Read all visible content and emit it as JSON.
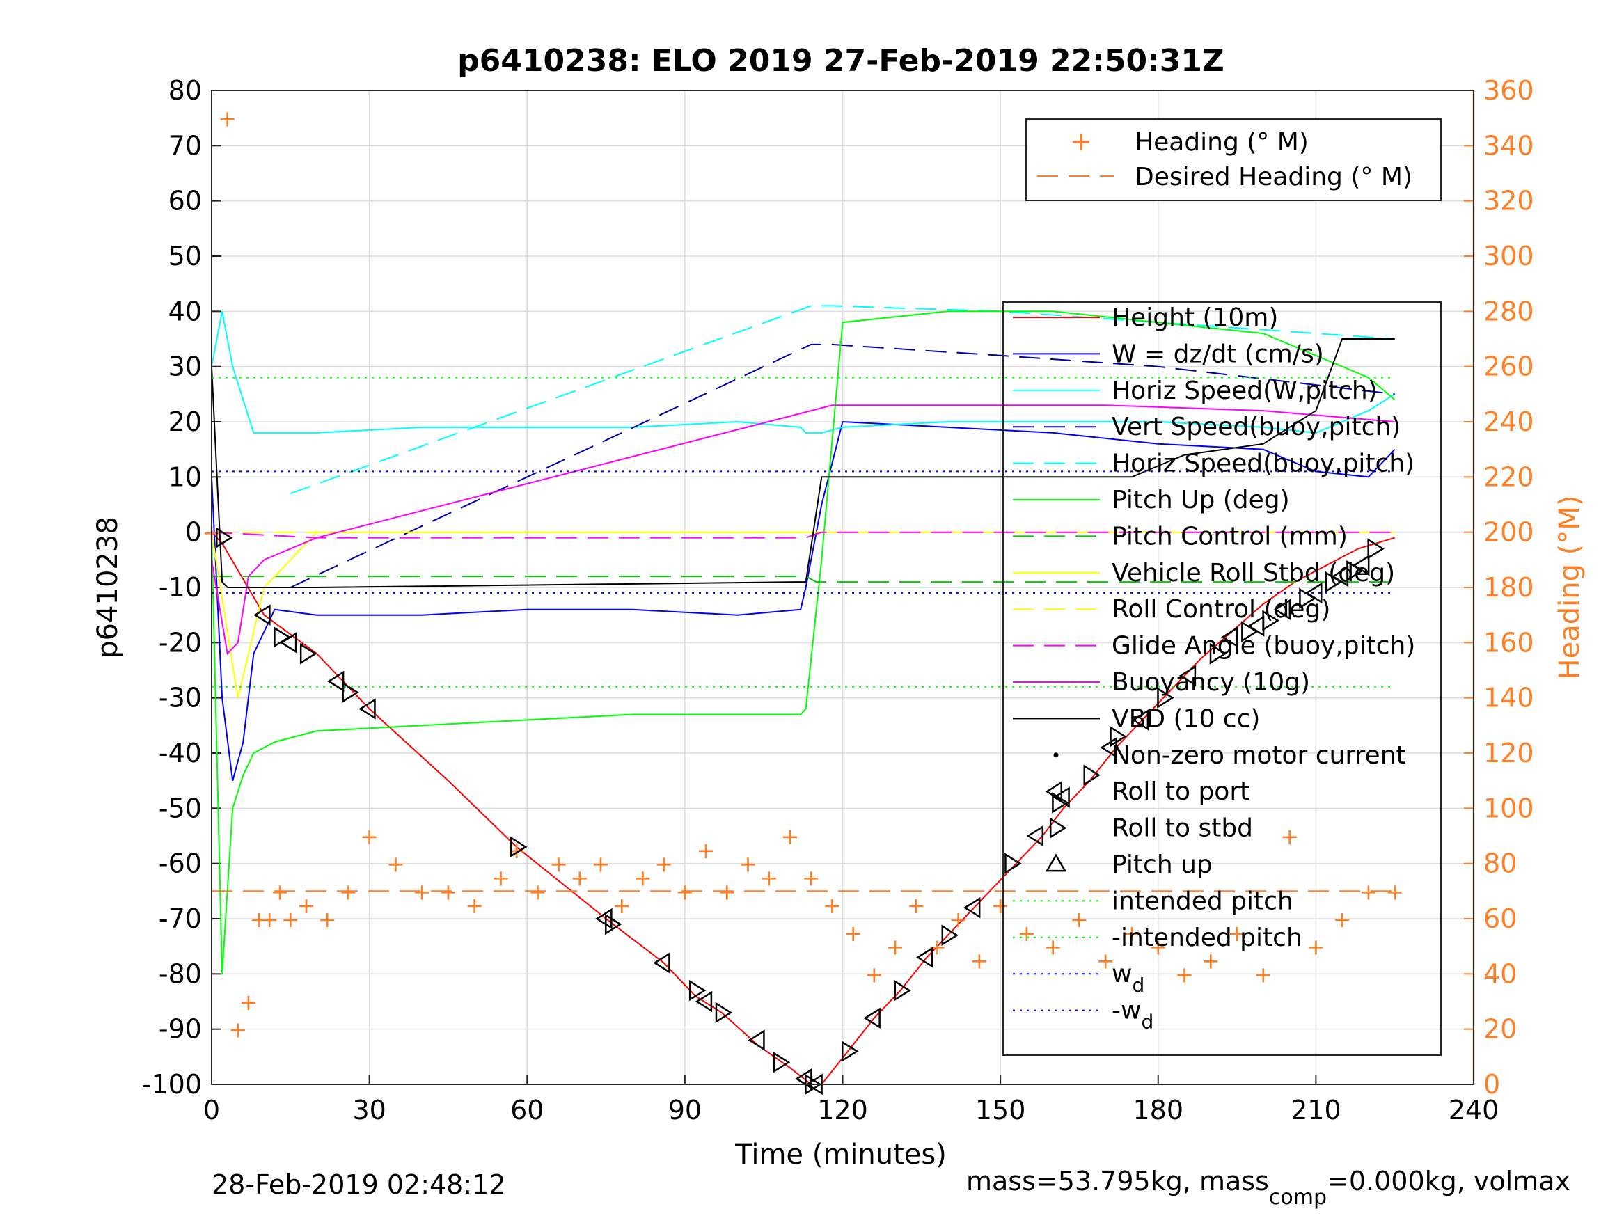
{
  "chart_data": {
    "type": "line",
    "title": "p6410238: ELO 2019 27-Feb-2019 22:50:31Z",
    "xlabel": "Time (minutes)",
    "ylabel": "p6410238",
    "y2label": "Heading (°M)",
    "xlim": [
      0,
      240
    ],
    "ylim": [
      -100,
      80
    ],
    "y2lim": [
      0,
      360
    ],
    "xticks": [
      "0",
      "30",
      "60",
      "90",
      "120",
      "150",
      "180",
      "210",
      "240"
    ],
    "yticks": [
      "80",
      "70",
      "60",
      "50",
      "40",
      "30",
      "20",
      "10",
      "0",
      "-10",
      "-20",
      "-30",
      "-40",
      "-50",
      "-60",
      "-70",
      "-80",
      "-90",
      "-100"
    ],
    "y2ticks": [
      "360",
      "340",
      "320",
      "300",
      "280",
      "260",
      "240",
      "220",
      "200",
      "180",
      "160",
      "140",
      "120",
      "100",
      "80",
      "60",
      "40",
      "20",
      "0"
    ],
    "grid": true,
    "colors": {
      "height": "#ff0000",
      "w": "#0000ff",
      "horiz_w": "#00ffff",
      "vert_buoy": "#0000aa",
      "horiz_buoy": "#00ffff",
      "pitch": "#00ff00",
      "pitch_ctrl": "#00cc00",
      "roll": "#ffff00",
      "roll_ctrl": "#ffff00",
      "glide": "#ff00ff",
      "buoy": "#ff00ff",
      "vbd": "#000000",
      "heading": "#ff7f27",
      "intended": "#00ff00",
      "wd": "#0000ff"
    },
    "series": [
      {
        "name": "Height (10m)",
        "x": [
          0,
          2,
          10,
          20,
          30,
          45,
          58,
          75,
          86,
          92,
          97,
          104,
          110,
          114,
          116,
          121,
          126,
          131,
          136,
          141,
          146,
          153,
          158,
          162,
          167,
          172,
          177,
          182,
          188,
          194,
          200,
          206,
          212,
          218,
          225
        ],
        "y": [
          0,
          -2,
          -15,
          -22,
          -32,
          -45,
          -57,
          -70,
          -78,
          -84,
          -87,
          -93,
          -97,
          -100,
          -100,
          -94,
          -88,
          -83,
          -77,
          -72,
          -67,
          -60,
          -55,
          -50,
          -45,
          -39,
          -34,
          -29,
          -23,
          -18,
          -13,
          -9,
          -6,
          -3,
          -1
        ]
      },
      {
        "name": "W = dz/dt (cm/s)",
        "x": [
          0,
          2,
          4,
          6,
          8,
          12,
          20,
          40,
          60,
          80,
          100,
          112,
          113,
          116,
          120,
          140,
          160,
          180,
          200,
          210,
          220,
          225
        ],
        "y": [
          10,
          -30,
          -45,
          -38,
          -22,
          -14,
          -15,
          -15,
          -14,
          -14,
          -15,
          -14,
          -10,
          5,
          20,
          19,
          18,
          16,
          15,
          11,
          10,
          15
        ]
      },
      {
        "name": "Horiz Speed(W,pitch)",
        "x": [
          0,
          2,
          4,
          6,
          8,
          12,
          20,
          40,
          60,
          80,
          100,
          112,
          113,
          116,
          120,
          140,
          160,
          180,
          200,
          210,
          220,
          225
        ],
        "y": [
          30,
          40,
          30,
          24,
          18,
          18,
          18,
          19,
          19,
          19,
          20,
          19,
          18,
          18,
          19,
          20,
          20,
          20,
          19,
          18,
          22,
          25
        ]
      },
      {
        "name": "Vert Speed(buoy,pitch)",
        "x": [
          15,
          114,
          118,
          150,
          180,
          225
        ],
        "y": [
          -10,
          34,
          34,
          32,
          30,
          25
        ]
      },
      {
        "name": "Horiz Speed(buoy,pitch)",
        "x": [
          15,
          114,
          118,
          150,
          180,
          225
        ],
        "y": [
          7,
          41,
          41,
          40,
          38,
          35
        ]
      },
      {
        "name": "Pitch Up (deg)",
        "x": [
          0,
          2,
          4,
          6,
          8,
          12,
          20,
          40,
          60,
          80,
          100,
          112,
          113,
          116,
          120,
          140,
          160,
          180,
          200,
          210,
          220,
          225
        ],
        "y": [
          0,
          -80,
          -50,
          -44,
          -40,
          -38,
          -36,
          -35,
          -34,
          -33,
          -33,
          -33,
          -32,
          -5,
          38,
          40,
          40,
          38,
          36,
          32,
          28,
          24
        ]
      },
      {
        "name": "Pitch Control (mm)",
        "x": [
          0,
          5,
          113,
          115,
          225
        ],
        "y": [
          -8,
          -8,
          -8,
          -9,
          -9
        ]
      },
      {
        "name": "Vehicle Roll Stbd (deg)",
        "x": [
          0,
          5,
          10,
          20,
          40,
          60,
          80,
          100,
          112,
          120,
          140,
          160,
          180,
          200,
          220,
          225
        ],
        "y": [
          0,
          -30,
          -10,
          0,
          0,
          0,
          0,
          0,
          0,
          0,
          0,
          0,
          0,
          0,
          0,
          0
        ]
      },
      {
        "name": "Roll Control (deg)",
        "x": [
          0,
          225
        ],
        "y": [
          0,
          0
        ]
      },
      {
        "name": "Glide Angle (buoy,pitch)",
        "x": [
          0,
          20,
          113,
          116,
          225
        ],
        "y": [
          0,
          -1,
          -1,
          0,
          0
        ]
      },
      {
        "name": "Buoyancy (10g)",
        "x": [
          0,
          3,
          5,
          7,
          10,
          20,
          114,
          118,
          170,
          200,
          225
        ],
        "y": [
          -5,
          -22,
          -20,
          -8,
          -5,
          -1,
          22,
          23,
          23,
          22,
          20
        ]
      },
      {
        "name": "VBD (10 cc)",
        "x": [
          0,
          2,
          3,
          20,
          112,
          113,
          116,
          118,
          175,
          185,
          200,
          210,
          215,
          225
        ],
        "y": [
          30,
          -9,
          -10,
          -10,
          -9,
          -9,
          10,
          10,
          10,
          14,
          16,
          22,
          35,
          35
        ]
      },
      {
        "name": "Heading (° M)",
        "axis": "right",
        "x": [
          0,
          3,
          5,
          7,
          9,
          11,
          13,
          15,
          18,
          22,
          26,
          30,
          35,
          40,
          45,
          50,
          55,
          58,
          62,
          66,
          70,
          74,
          78,
          82,
          86,
          90,
          94,
          98,
          102,
          106,
          110,
          114,
          118,
          122,
          126,
          130,
          134,
          138,
          142,
          146,
          150,
          155,
          160,
          165,
          170,
          175,
          180,
          185,
          190,
          195,
          200,
          205,
          210,
          215,
          220,
          225
        ],
        "y": [
          200,
          350,
          20,
          30,
          60,
          60,
          70,
          60,
          65,
          60,
          70,
          90,
          80,
          70,
          70,
          65,
          75,
          85,
          70,
          80,
          75,
          80,
          65,
          75,
          80,
          70,
          85,
          70,
          80,
          75,
          90,
          75,
          65,
          55,
          40,
          50,
          65,
          50,
          60,
          45,
          65,
          55,
          50,
          60,
          45,
          55,
          50,
          40,
          45,
          55,
          40,
          90,
          50,
          60,
          70,
          70
        ]
      },
      {
        "name": "Desired Heading (° M)",
        "axis": "right",
        "x": [
          0,
          225
        ],
        "y": [
          70,
          70
        ]
      },
      {
        "name": "intended pitch",
        "x": [
          0,
          225
        ],
        "y": [
          28,
          28
        ]
      },
      {
        "name": "-intended pitch",
        "x": [
          0,
          225
        ],
        "y": [
          -28,
          -28
        ]
      },
      {
        "name": "w_d",
        "x": [
          0,
          225
        ],
        "y": [
          11,
          11
        ]
      },
      {
        "name": "-w_d",
        "x": [
          0,
          225
        ],
        "y": [
          -11,
          -11
        ]
      }
    ],
    "roll_markers": {
      "x": [
        2,
        10,
        13,
        15,
        18,
        24,
        26,
        30,
        58,
        75,
        76,
        86,
        92,
        94,
        97,
        104,
        108,
        113,
        114,
        115,
        121,
        126,
        131,
        136,
        140,
        145,
        152,
        157,
        161,
        162,
        167,
        171,
        172,
        177,
        181,
        186,
        191,
        194,
        197,
        199,
        201,
        204,
        208,
        210,
        213,
        215,
        217,
        219,
        221
      ],
      "y": [
        -1,
        -15,
        -19,
        -20,
        -22,
        -27,
        -29,
        -32,
        -57,
        -70,
        -71,
        -78,
        -83,
        -85,
        -87,
        -92,
        -96,
        -99,
        -100,
        -100,
        -94,
        -88,
        -83,
        -77,
        -73,
        -68,
        -60,
        -55,
        -49,
        -48,
        -44,
        -39,
        -37,
        -34,
        -30,
        -26,
        -22,
        -19,
        -18,
        -17,
        -16,
        -14,
        -12,
        -11,
        -9,
        -8,
        -7,
        -6,
        -3
      ]
    },
    "legend_top": [
      {
        "label": "Heading (° M)",
        "marker": "+",
        "color": "#ff7f27"
      },
      {
        "label": "Desired Heading (° M)",
        "dash": true,
        "color": "#ff7f27"
      }
    ],
    "legend_main": [
      {
        "label": "Height (10m)",
        "color": "#ff0000",
        "style": "solid"
      },
      {
        "label": "W = dz/dt (cm/s)",
        "color": "#0000ff",
        "style": "solid"
      },
      {
        "label": "Horiz Speed(W,pitch)",
        "color": "#00ffff",
        "style": "solid"
      },
      {
        "label": "Vert Speed(buoy,pitch)",
        "color": "#0000aa",
        "style": "dash"
      },
      {
        "label": "Horiz Speed(buoy,pitch)",
        "color": "#00ffff",
        "style": "dash"
      },
      {
        "label": "Pitch Up (deg)",
        "color": "#00ff00",
        "style": "solid"
      },
      {
        "label": "Pitch Control (mm)",
        "color": "#00cc00",
        "style": "dash"
      },
      {
        "label": "Vehicle Roll Stbd (deg)",
        "color": "#ffff00",
        "style": "solid"
      },
      {
        "label": "Roll Control (deg)",
        "color": "#ffff00",
        "style": "dash"
      },
      {
        "label": "Glide Angle (buoy,pitch)",
        "color": "#ff00ff",
        "style": "dash"
      },
      {
        "label": "Buoyancy (10g)",
        "color": "#ff00ff",
        "style": "solid"
      },
      {
        "label": "VBD (10 cc)",
        "color": "#000000",
        "style": "solid"
      },
      {
        "label": "Non-zero motor current",
        "color": "#000000",
        "style": "dot"
      },
      {
        "label": "Roll to port",
        "color": "#000000",
        "style": "tri-left"
      },
      {
        "label": "Roll to stbd",
        "color": "#000000",
        "style": "tri-right"
      },
      {
        "label": "Pitch up",
        "color": "#000000",
        "style": "tri-up"
      },
      {
        "label": "intended pitch",
        "color": "#00ff00",
        "style": "dotted"
      },
      {
        "label": "-intended pitch",
        "color": "#00ff00",
        "style": "dotted"
      },
      {
        "label": "w_d",
        "color": "#0000ff",
        "style": "dotted"
      },
      {
        "label": "-w_d",
        "color": "#0000ff",
        "style": "dotted"
      }
    ]
  },
  "footer": {
    "timestamp": "28-Feb-2019 02:48:12",
    "mass_text": "mass=53.795kg, mass",
    "mass_sub": "comp",
    "mass_rest": "=0.000kg, volmax"
  }
}
